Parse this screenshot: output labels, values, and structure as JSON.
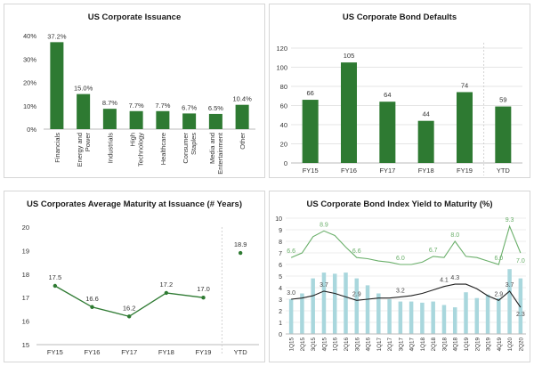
{
  "colors": {
    "dark_green": "#2e7a32",
    "light_green": "#6aaf6a",
    "light_blue": "#a9d7dd",
    "gridline": "#dddddd",
    "axis": "#bbbbbb",
    "divider": "#c8c8c8"
  },
  "chart_data": [
    {
      "type": "bar",
      "title": "US Corporate Issuance",
      "categories": [
        "Financials",
        "Energy and Power",
        "Industrials",
        "High Technology",
        "Healthcare",
        "Consumer Staples",
        "Media and Entertainment",
        "Other"
      ],
      "values": [
        37.2,
        15.0,
        8.7,
        7.7,
        7.7,
        6.7,
        6.5,
        10.4
      ],
      "data_labels": [
        "37.2%",
        "15.0%",
        "8.7%",
        "7.7%",
        "7.7%",
        "6.7%",
        "6.5%",
        "10.4%"
      ],
      "y_ticks": [
        "40%",
        "30%",
        "20%",
        "10%",
        "0%"
      ],
      "ylim": [
        0,
        40
      ],
      "grid": false
    },
    {
      "type": "bar",
      "title": "US Corporate Bond Defaults",
      "categories": [
        "FY15",
        "FY16",
        "FY17",
        "FY18",
        "FY19",
        "YTD"
      ],
      "values": [
        66,
        105,
        64,
        44,
        74,
        59
      ],
      "data_labels": [
        "66",
        "105",
        "64",
        "44",
        "74",
        "59"
      ],
      "y_ticks": [
        "120",
        "100",
        "80",
        "60",
        "40",
        "20",
        "0"
      ],
      "ylim": [
        0,
        120
      ],
      "grid": true
    },
    {
      "type": "line",
      "title": "US Corporates Average Maturity at Issuance (# Years)",
      "categories": [
        "FY15",
        "FY16",
        "FY17",
        "FY18",
        "FY19"
      ],
      "values": [
        17.5,
        16.6,
        16.2,
        17.2,
        17.0
      ],
      "data_labels": [
        "17.5",
        "16.6",
        "16.2",
        "17.2",
        "17.0"
      ],
      "ytd": {
        "label": "YTD",
        "value": 18.9,
        "data_label": "18.9"
      },
      "y_ticks": [
        "20",
        "19",
        "18",
        "17",
        "16",
        "15"
      ],
      "ylim": [
        15,
        20
      ],
      "grid": false
    },
    {
      "type": "line",
      "title": "US Corporate Bond Index Yield to Maturity (%)",
      "categories": [
        "1Q15",
        "2Q15",
        "3Q15",
        "4Q15",
        "1Q16",
        "2Q16",
        "3Q16",
        "4Q16",
        "1Q17",
        "2Q17",
        "3Q17",
        "4Q17",
        "1Q18",
        "2Q18",
        "3Q18",
        "4Q18",
        "1Q19",
        "2Q19",
        "3Q19",
        "4Q19",
        "1Q20",
        "2Q20"
      ],
      "series": [
        {
          "type": "line",
          "values": [
            6.6,
            7.0,
            8.4,
            8.9,
            8.5,
            7.5,
            6.6,
            6.5,
            6.3,
            6.2,
            6.0,
            6.0,
            6.2,
            6.7,
            6.6,
            8.0,
            6.7,
            6.6,
            6.3,
            6.0,
            9.3,
            7.0
          ]
        },
        {
          "type": "line",
          "values": [
            3.0,
            3.1,
            3.3,
            3.7,
            3.5,
            3.2,
            2.9,
            3.0,
            3.1,
            3.1,
            3.2,
            3.3,
            3.5,
            3.8,
            4.1,
            4.3,
            4.3,
            3.9,
            3.3,
            2.9,
            3.7,
            2.3
          ]
        },
        {
          "type": "bar",
          "values": [
            3.0,
            3.5,
            4.8,
            5.3,
            5.2,
            5.3,
            4.8,
            4.2,
            3.5,
            3.0,
            2.8,
            2.8,
            2.7,
            2.8,
            2.5,
            2.3,
            3.6,
            3.1,
            3.4,
            3.1,
            5.6,
            4.8
          ]
        }
      ],
      "annotations": [
        {
          "series": 0,
          "index": 0,
          "text": "6.6"
        },
        {
          "series": 0,
          "index": 3,
          "text": "8.9"
        },
        {
          "series": 0,
          "index": 6,
          "text": "6.6"
        },
        {
          "series": 0,
          "index": 10,
          "text": "6.0"
        },
        {
          "series": 0,
          "index": 13,
          "text": "6.7"
        },
        {
          "series": 0,
          "index": 15,
          "text": "8.0"
        },
        {
          "series": 0,
          "index": 19,
          "text": "6.0"
        },
        {
          "series": 0,
          "index": 20,
          "text": "9.3"
        },
        {
          "series": 0,
          "index": 21,
          "text": "7.0"
        },
        {
          "series": 1,
          "index": 0,
          "text": "3.0"
        },
        {
          "series": 1,
          "index": 3,
          "text": "3.7"
        },
        {
          "series": 1,
          "index": 6,
          "text": "2.9"
        },
        {
          "series": 1,
          "index": 10,
          "text": "3.2"
        },
        {
          "series": 1,
          "index": 14,
          "text": "4.1"
        },
        {
          "series": 1,
          "index": 15,
          "text": "4.3"
        },
        {
          "series": 1,
          "index": 19,
          "text": "2.9"
        },
        {
          "series": 1,
          "index": 20,
          "text": "3.7"
        },
        {
          "series": 1,
          "index": 21,
          "text": "2.3"
        }
      ],
      "y_ticks": [
        "10",
        "9",
        "8",
        "7",
        "6",
        "5",
        "4",
        "3",
        "2",
        "1",
        "0"
      ],
      "ylim": [
        0,
        10
      ],
      "grid": true
    }
  ]
}
